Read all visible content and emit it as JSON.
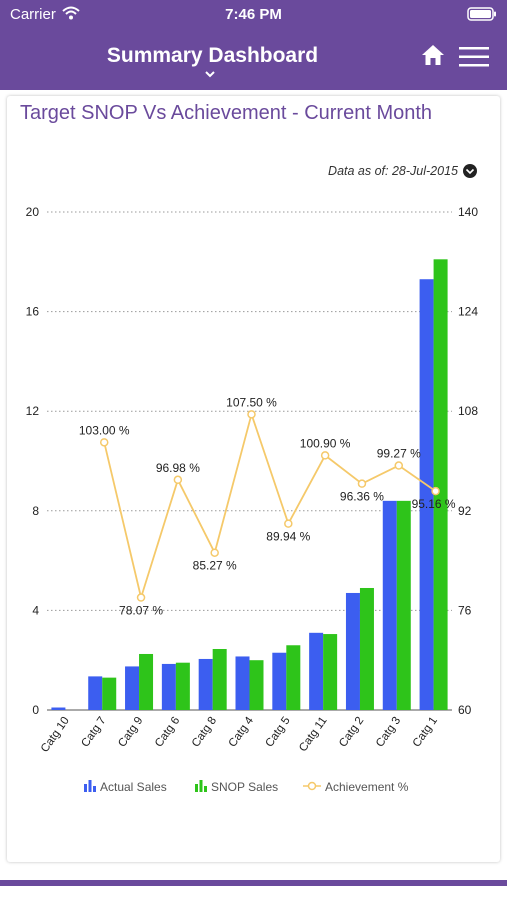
{
  "status_bar": {
    "carrier": "Carrier",
    "time": "7:46 PM"
  },
  "nav": {
    "title": "Summary Dashboard",
    "icons": [
      "home-icon",
      "hamburger-menu-icon",
      "chevron-down-icon"
    ]
  },
  "card": {
    "title": "Target SNOP Vs Achievement - Current Month",
    "data_as_of": "Data as of: 28-Jul-2015"
  },
  "colors": {
    "primary": "#6a4a9c",
    "actual": "#3c5ef0",
    "snop": "#2ec41a",
    "achievement": "#f5c96a"
  },
  "chart_data": {
    "type": "bar",
    "categories": [
      "Catg 10",
      "Catg 7",
      "Catg 9",
      "Catg 6",
      "Catg 8",
      "Catg 4",
      "Catg 5",
      "Catg 11",
      "Catg 2",
      "Catg 3",
      "Catg 1"
    ],
    "series": [
      {
        "name": "Actual Sales",
        "type": "bar",
        "axis": "left",
        "values": [
          0.1,
          1.35,
          1.75,
          1.85,
          2.05,
          2.15,
          2.3,
          3.1,
          4.7,
          8.4,
          17.3
        ]
      },
      {
        "name": "SNOP Sales",
        "type": "bar",
        "axis": "left",
        "values": [
          0.0,
          1.3,
          2.25,
          1.9,
          2.45,
          2.0,
          2.6,
          3.05,
          4.9,
          8.4,
          18.1
        ]
      },
      {
        "name": "Achievement %",
        "type": "line",
        "axis": "right",
        "values": [
          null,
          103.0,
          78.07,
          96.98,
          85.27,
          107.5,
          89.94,
          100.9,
          96.36,
          99.27,
          95.16
        ],
        "labels": [
          "",
          "103.00 %",
          "78.07 %",
          "96.98 %",
          "85.27 %",
          "107.50 %",
          "89.94 %",
          "100.90 %",
          "96.36 %",
          "99.27 %",
          "95.16 %"
        ]
      }
    ],
    "y_left": {
      "ticks": [
        "0",
        "4",
        "8",
        "12",
        "16",
        "20"
      ],
      "ylim": [
        0,
        20
      ]
    },
    "y_right": {
      "ticks": [
        "60",
        "76",
        "92",
        "108",
        "124",
        "140"
      ],
      "ylim": [
        60,
        140
      ]
    },
    "grid": true,
    "legend_position": "bottom",
    "legend": [
      "Actual Sales",
      "SNOP Sales",
      "Achievement %"
    ]
  }
}
